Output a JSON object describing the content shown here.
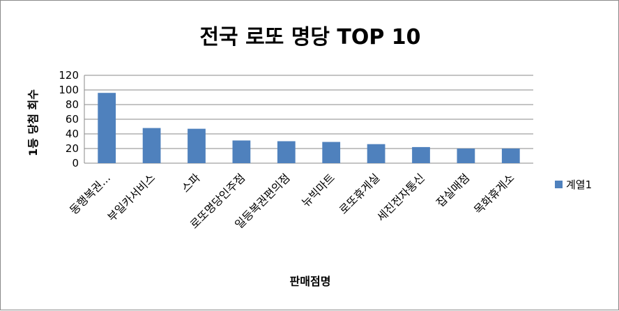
{
  "chart_data": {
    "type": "bar",
    "title": "전국 로또 명당 TOP 10",
    "xlabel": "판매점명",
    "ylabel": "1등 당첨 회수",
    "categories": [
      "동행복권...",
      "부일카서비스",
      "스파",
      "로또명당인주점",
      "일등복권편의점",
      "뉴빅마트",
      "로또휴게실",
      "세진전자통신",
      "잡실매점",
      "목화휴게소"
    ],
    "series": [
      {
        "name": "계열1",
        "values": [
          96,
          48,
          47,
          31,
          30,
          29,
          26,
          22,
          20,
          20
        ],
        "color": "#4f81bd"
      }
    ],
    "ylim": [
      0,
      120
    ],
    "yticks": [
      0,
      20,
      40,
      60,
      80,
      100,
      120
    ],
    "grid": true,
    "legend_position": "right"
  }
}
